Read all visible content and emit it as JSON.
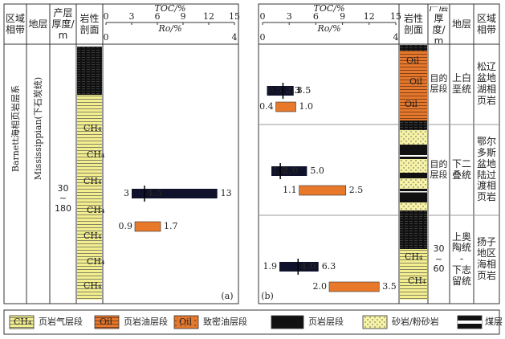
{
  "panels": [
    {
      "label": "(a)",
      "headers": {
        "region": "区域相带",
        "stratum": "地层",
        "thickness": "产层厚度/m",
        "lithology": "岩性剖面"
      },
      "region": "Barnett海相页岩层系",
      "stratum": "Mississippian(下石炭统)",
      "thickness": [
        "30",
        "~",
        "180"
      ],
      "toc_axis": {
        "title": "TOC/%",
        "lim": [
          0,
          15
        ],
        "ticks": [
          0,
          3,
          6,
          9,
          12,
          15
        ]
      },
      "ro_axis": {
        "title": "Ro/%",
        "lim": [
          0,
          4
        ],
        "ticks": [
          0,
          4
        ]
      },
      "rows": [
        {
          "toc": {
            "min": 3,
            "mean": 4.5,
            "max": 13
          },
          "ro": {
            "min": 0.9,
            "max": 1.7
          }
        }
      ]
    },
    {
      "label": "(b)",
      "headers": {
        "region": "区域相带",
        "stratum": "地层",
        "thickness": "产层厚度/m",
        "lithology": "岩性剖面"
      },
      "toc_axis": {
        "title": "TOC/%",
        "lim": [
          0,
          15
        ],
        "ticks": [
          0,
          3,
          6,
          9,
          12,
          15
        ]
      },
      "ro_axis": {
        "title": "Ro/%",
        "lim": [
          0,
          4
        ],
        "ticks": [
          0,
          4
        ]
      },
      "rows": [
        {
          "region": "松辽盆地湖相页岩",
          "stratum": "上白垩统",
          "thickness": "目的层段",
          "toc": {
            "min": 0.5,
            "mean": 2.3,
            "max": 3.5
          },
          "ro": {
            "min": 0.4,
            "max": {
              "value": 1,
              "label": "1.0"
            }
          }
        },
        {
          "region": "鄂尔多斯盆地陆过渡相页岩",
          "stratum": "下二叠统",
          "thickness": "目的层段",
          "toc": {
            "min": {
              "value": 1,
              "label": "1.0"
            },
            "mean": {
              "value": 2,
              "label": "2.0"
            },
            "max": {
              "value": 5,
              "label": "5.0"
            }
          },
          "ro": {
            "min": 1.1,
            "max": 2.5
          }
        },
        {
          "region": "扬子地区海相页岩",
          "stratum": [
            "上奥陶统",
            "-",
            "下志留统"
          ],
          "thickness": [
            "30",
            "~",
            "60"
          ],
          "toc": {
            "min": 1.9,
            "mean": {
              "value": 4,
              "label": "4.0"
            },
            "max": 6.3
          },
          "ro": {
            "min": {
              "value": 2,
              "label": "2.0"
            },
            "max": 3.5
          }
        }
      ]
    }
  ],
  "legend": [
    {
      "swatch": "CH₄",
      "label": "页岩气层段"
    },
    {
      "swatch": "Oil",
      "label": "页岩油层段"
    },
    {
      "swatch": "Oil",
      "label": "致密油层段"
    },
    {
      "label": "页岩层段"
    },
    {
      "label": "砂岩/粉砂岩"
    },
    {
      "label": "煤层"
    }
  ]
}
